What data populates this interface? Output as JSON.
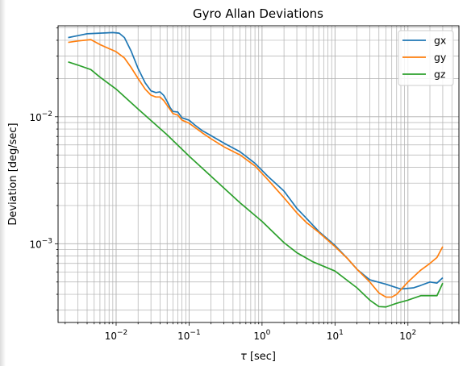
{
  "chart_data": {
    "type": "line",
    "title": "Gyro Allan Deviations",
    "xlabel": "τ [sec]",
    "ylabel": "Deviation [deg/sec]",
    "xscale": "log",
    "yscale": "log",
    "xlim": [
      0.0016,
      500
    ],
    "ylim": [
      0.00024,
      0.052
    ],
    "grid": "major and minor",
    "legend_position": "top-right",
    "x_ticks": [
      {
        "value": 0.01,
        "base": "10",
        "exp": "−2"
      },
      {
        "value": 0.1,
        "base": "10",
        "exp": "−1"
      },
      {
        "value": 1,
        "base": "10",
        "exp": "0"
      },
      {
        "value": 10,
        "base": "10",
        "exp": "1"
      },
      {
        "value": 100,
        "base": "10",
        "exp": "2"
      }
    ],
    "y_ticks": [
      {
        "value": 0.001,
        "base": "10",
        "exp": "−3"
      },
      {
        "value": 0.01,
        "base": "10",
        "exp": "−2"
      }
    ],
    "series": [
      {
        "name": "gx",
        "color": "#1f77b4",
        "points": [
          [
            0.0022,
            0.042
          ],
          [
            0.003,
            0.0435
          ],
          [
            0.004,
            0.045
          ],
          [
            0.006,
            0.0455
          ],
          [
            0.009,
            0.046
          ],
          [
            0.011,
            0.0455
          ],
          [
            0.013,
            0.042
          ],
          [
            0.016,
            0.033
          ],
          [
            0.02,
            0.024
          ],
          [
            0.025,
            0.0185
          ],
          [
            0.03,
            0.016
          ],
          [
            0.035,
            0.0155
          ],
          [
            0.04,
            0.0157
          ],
          [
            0.045,
            0.0147
          ],
          [
            0.05,
            0.0132
          ],
          [
            0.055,
            0.0118
          ],
          [
            0.06,
            0.011
          ],
          [
            0.07,
            0.0109
          ],
          [
            0.08,
            0.0098
          ],
          [
            0.1,
            0.0094
          ],
          [
            0.12,
            0.0086
          ],
          [
            0.15,
            0.0078
          ],
          [
            0.2,
            0.0071
          ],
          [
            0.3,
            0.0062
          ],
          [
            0.5,
            0.0053
          ],
          [
            0.8,
            0.0043
          ],
          [
            1.2,
            0.0034
          ],
          [
            2,
            0.0026
          ],
          [
            3,
            0.0019
          ],
          [
            4,
            0.0016
          ],
          [
            6,
            0.00125
          ],
          [
            10,
            0.00097
          ],
          [
            15,
            0.00076
          ],
          [
            20,
            0.00063
          ],
          [
            30,
            0.00052
          ],
          [
            50,
            0.00048
          ],
          [
            80,
            0.00044
          ],
          [
            120,
            0.00045
          ],
          [
            150,
            0.00047
          ],
          [
            200,
            0.0005
          ],
          [
            250,
            0.00049
          ],
          [
            300,
            0.00054
          ]
        ]
      },
      {
        "name": "gy",
        "color": "#ff7f0e",
        "points": [
          [
            0.0022,
            0.0385
          ],
          [
            0.003,
            0.0395
          ],
          [
            0.0045,
            0.0405
          ],
          [
            0.006,
            0.037
          ],
          [
            0.01,
            0.0325
          ],
          [
            0.013,
            0.029
          ],
          [
            0.016,
            0.0245
          ],
          [
            0.02,
            0.02
          ],
          [
            0.025,
            0.0165
          ],
          [
            0.03,
            0.0148
          ],
          [
            0.035,
            0.0143
          ],
          [
            0.04,
            0.0143
          ],
          [
            0.045,
            0.0134
          ],
          [
            0.05,
            0.0123
          ],
          [
            0.06,
            0.0106
          ],
          [
            0.07,
            0.0103
          ],
          [
            0.08,
            0.0094
          ],
          [
            0.1,
            0.0089
          ],
          [
            0.15,
            0.0075
          ],
          [
            0.2,
            0.0067
          ],
          [
            0.3,
            0.0058
          ],
          [
            0.5,
            0.005
          ],
          [
            0.8,
            0.0041
          ],
          [
            1.2,
            0.0032
          ],
          [
            2,
            0.0023
          ],
          [
            3,
            0.00175
          ],
          [
            4,
            0.00148
          ],
          [
            6,
            0.00123
          ],
          [
            10,
            0.00095
          ],
          [
            15,
            0.00076
          ],
          [
            20,
            0.00063
          ],
          [
            30,
            0.0005
          ],
          [
            40,
            0.00041
          ],
          [
            50,
            0.00038
          ],
          [
            60,
            0.00038
          ],
          [
            70,
            0.0004
          ],
          [
            100,
            0.0005
          ],
          [
            150,
            0.00062
          ],
          [
            200,
            0.0007
          ],
          [
            250,
            0.00078
          ],
          [
            300,
            0.00095
          ]
        ]
      },
      {
        "name": "gz",
        "color": "#2ca02c",
        "points": [
          [
            0.0022,
            0.027
          ],
          [
            0.003,
            0.0255
          ],
          [
            0.0045,
            0.0235
          ],
          [
            0.006,
            0.0205
          ],
          [
            0.01,
            0.0165
          ],
          [
            0.02,
            0.0115
          ],
          [
            0.05,
            0.0072
          ],
          [
            0.1,
            0.0049
          ],
          [
            0.2,
            0.0034
          ],
          [
            0.5,
            0.0021
          ],
          [
            1,
            0.0015
          ],
          [
            2,
            0.00102
          ],
          [
            3,
            0.00085
          ],
          [
            5,
            0.00072
          ],
          [
            10,
            0.00061
          ],
          [
            20,
            0.00045
          ],
          [
            30,
            0.00036
          ],
          [
            40,
            0.00032
          ],
          [
            50,
            0.000318
          ],
          [
            70,
            0.00034
          ],
          [
            100,
            0.00036
          ],
          [
            150,
            0.00039
          ],
          [
            250,
            0.00039
          ],
          [
            300,
            0.00049
          ]
        ]
      }
    ]
  }
}
